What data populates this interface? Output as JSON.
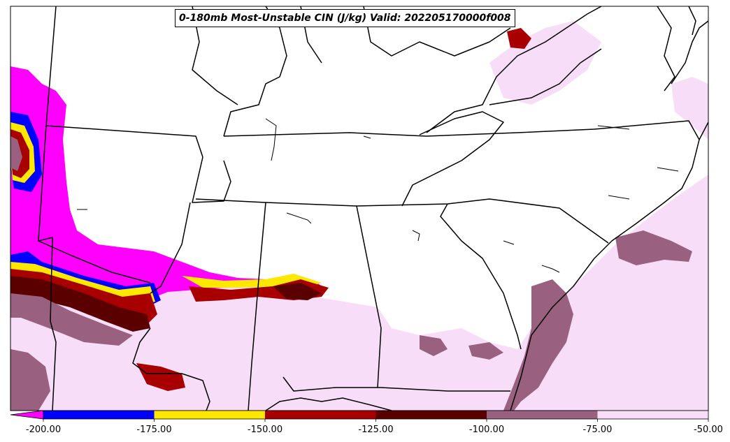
{
  "title": "0-180mb Most-Unstable CIN (J/kg) Valid: 202205170000f008",
  "colorbar": {
    "ticks": [
      "-200.00",
      "-175.00",
      "-150.00",
      "-125.00",
      "-100.00",
      "-75.00",
      "-50.00"
    ],
    "bins": [
      {
        "range": [
          -200,
          -175
        ],
        "color": "#0000ff"
      },
      {
        "range": [
          -175,
          -150
        ],
        "color": "#ffe800"
      },
      {
        "range": [
          -150,
          -125
        ],
        "color": "#a80000"
      },
      {
        "range": [
          -125,
          -100
        ],
        "color": "#5a0000"
      },
      {
        "range": [
          -100,
          -75
        ],
        "color": "#9a6080"
      },
      {
        "range": [
          -75,
          -50
        ],
        "color": "#f7ddf7"
      }
    ],
    "under_color": "#ff00ff"
  },
  "colors": {
    "magenta": "#ff00ff",
    "blue": "#0000ff",
    "yellow": "#ffe800",
    "red": "#a80000",
    "darkred": "#5a0000",
    "mauve": "#9a6080",
    "pink": "#f7ddf7"
  }
}
